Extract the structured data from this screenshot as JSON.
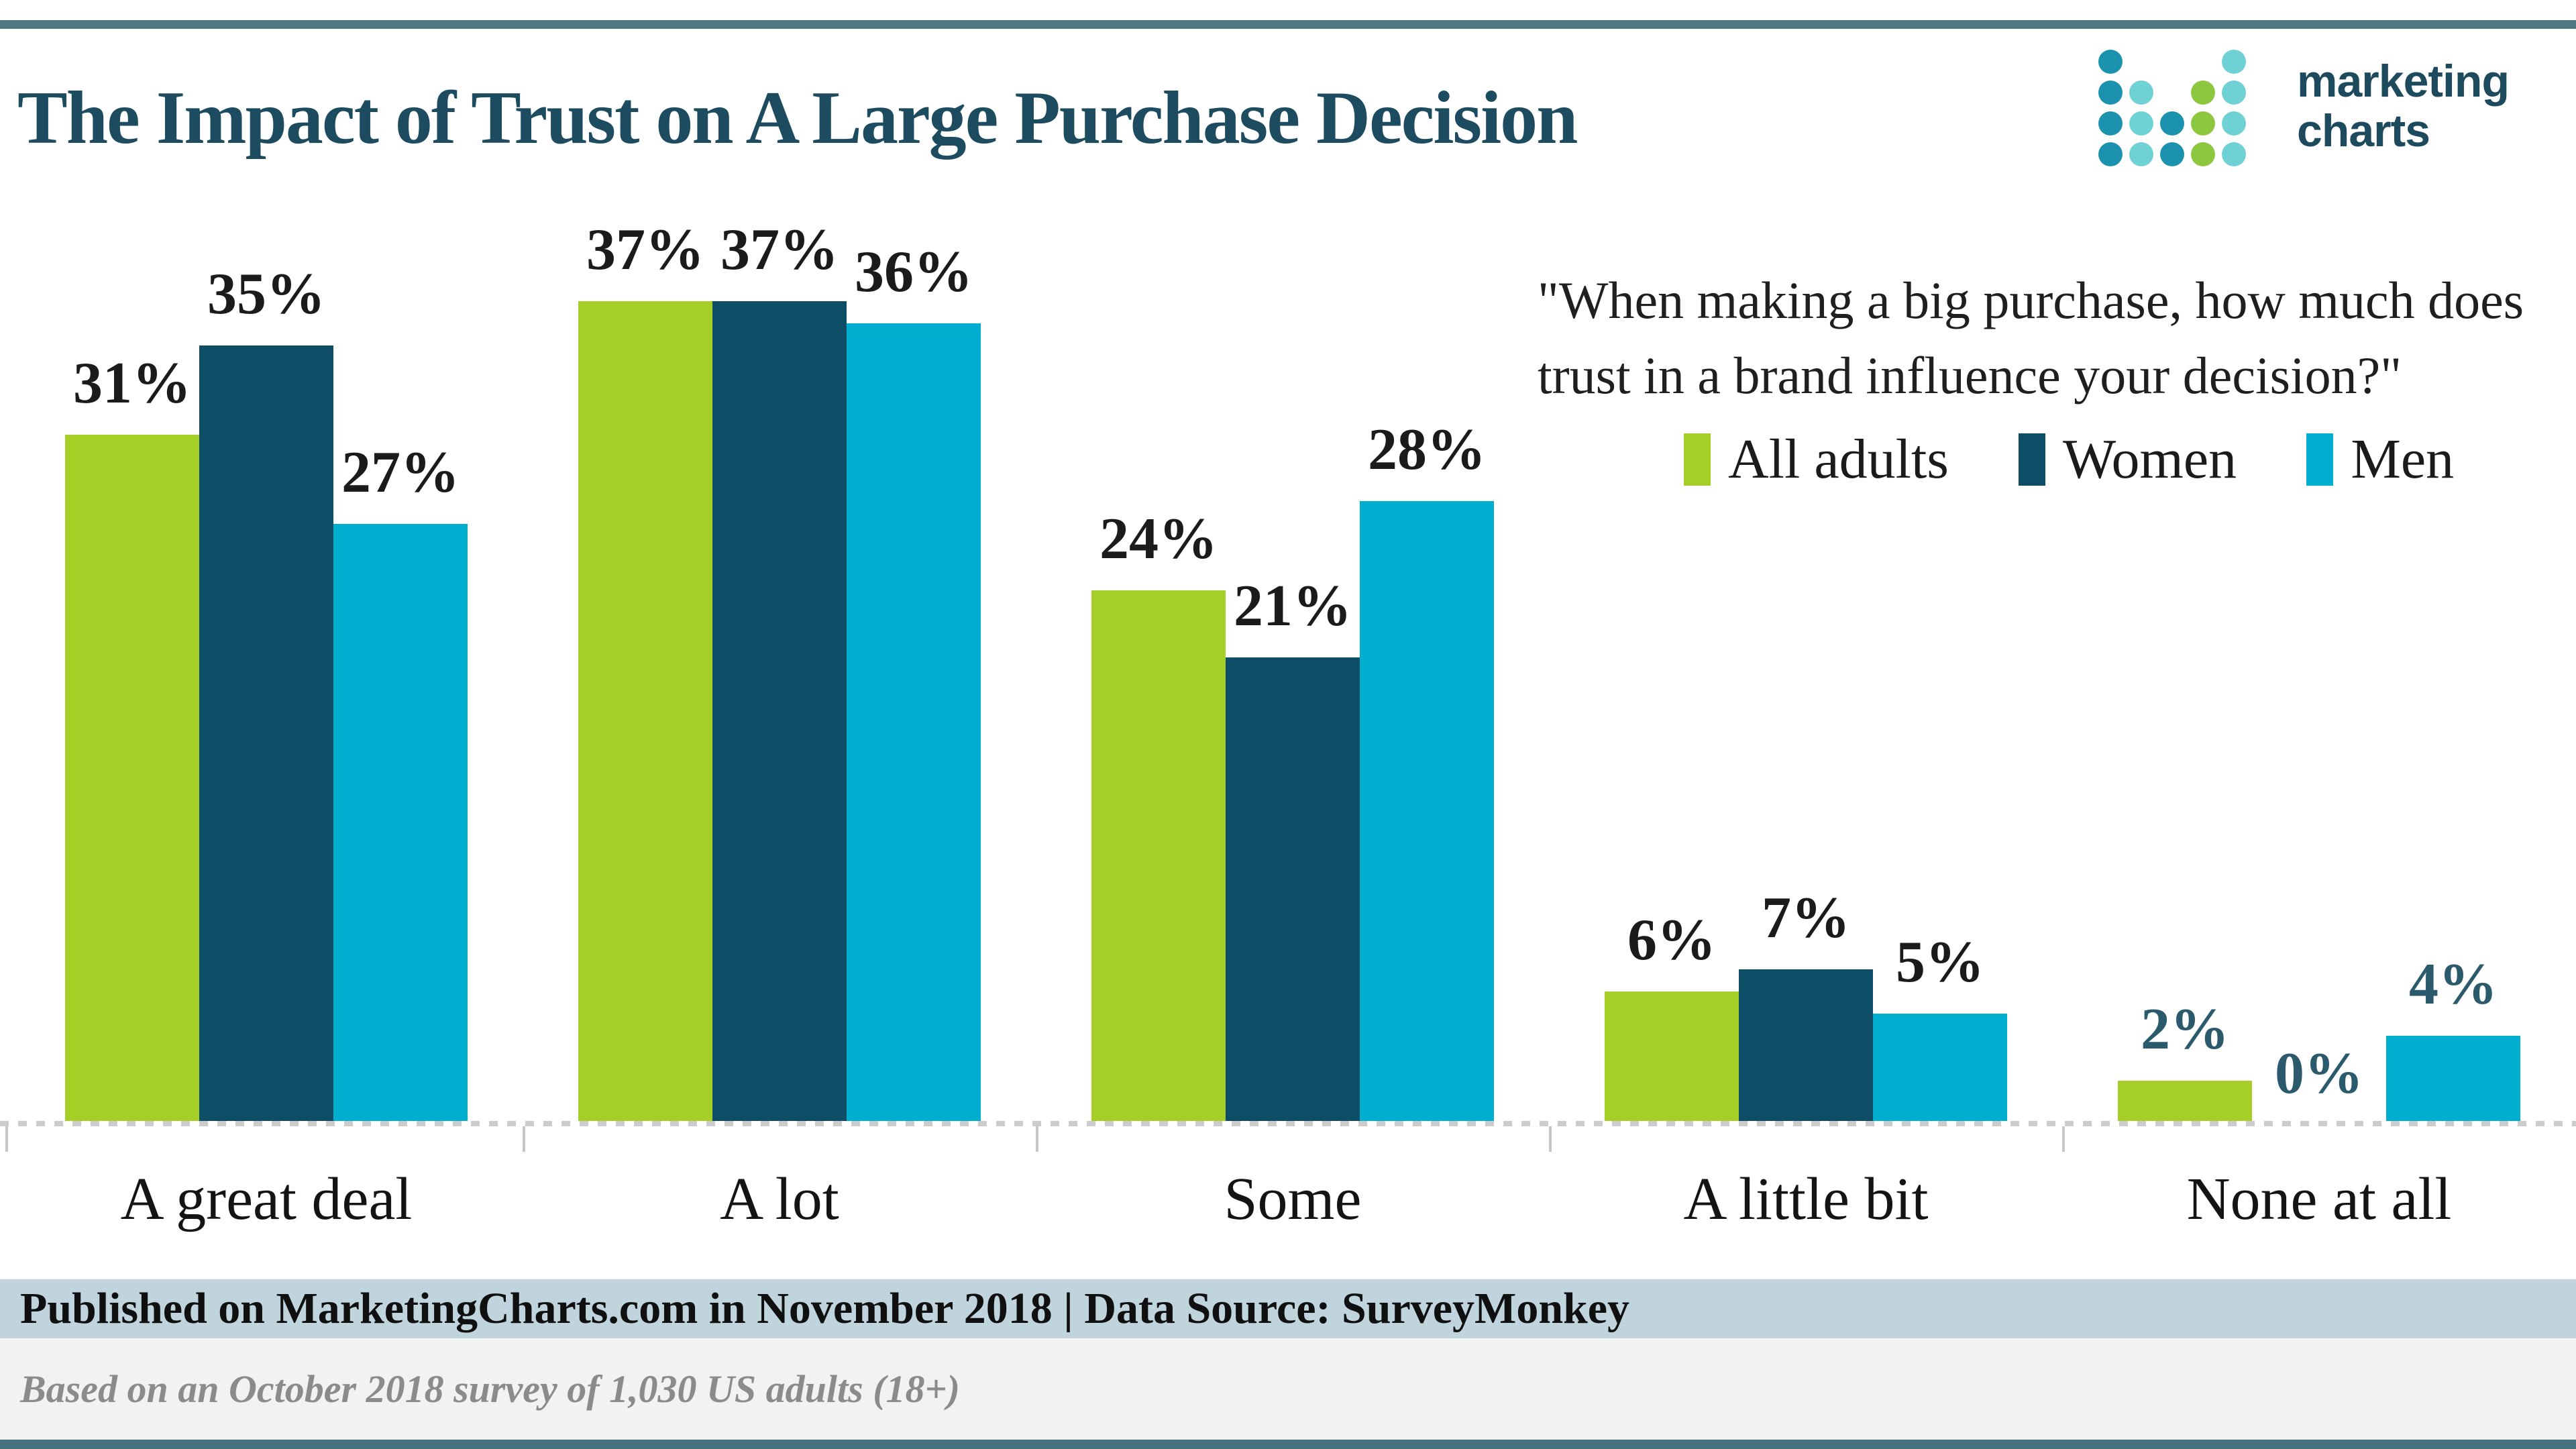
{
  "header": {
    "title": "The Impact of Trust on A Large Purchase Decision",
    "logo": {
      "wordmark_line1": "marketing",
      "wordmark_line2": "charts",
      "dot_colors": {
        "b": "#1b92ae",
        "c": "#70d1d4",
        "g": "#8dc63f"
      },
      "dot_grid": [
        [
          "b",
          "",
          "",
          "",
          "c"
        ],
        [
          "b",
          "c",
          "",
          "g",
          "c"
        ],
        [
          "b",
          "c",
          "b",
          "g",
          "c"
        ],
        [
          "b",
          "c",
          "b",
          "g",
          "c"
        ]
      ]
    }
  },
  "quote": {
    "line1": "\"When making a big purchase, how much does",
    "line2": "trust in a brand influence your decision?\""
  },
  "chart_data": {
    "type": "bar",
    "title": "The Impact of Trust on A Large Purchase Decision",
    "categories": [
      "A great deal",
      "A lot",
      "Some",
      "A little bit",
      "None at all"
    ],
    "series": [
      {
        "name": "All adults",
        "color": "#a5ce27",
        "values": [
          31,
          37,
          24,
          6,
          2
        ]
      },
      {
        "name": "Women",
        "color": "#0e4d66",
        "values": [
          35,
          37,
          21,
          7,
          0
        ]
      },
      {
        "name": "Men",
        "color": "#00aecf",
        "values": [
          27,
          36,
          28,
          5,
          4
        ]
      }
    ],
    "value_suffix": "%",
    "value_label_colors": [
      "#1b1b1b",
      "#1b1b1b",
      "#1b1b1b",
      "#1b1b1b",
      "#2b5a6d"
    ],
    "ylim": [
      0,
      40
    ],
    "grid": false,
    "legend_position": "upper-right",
    "baseline_style": "dotted",
    "xlabel": "",
    "ylabel": ""
  },
  "footer": {
    "published": "Published on MarketingCharts.com in November 2018 | Data Source: SurveyMonkey",
    "based_on": "Based on an October 2018 survey of 1,030 US adults (18+)"
  },
  "colors": {
    "title": "#1d4b5f",
    "top_rule": "#4e7683",
    "bottom_rule": "#45707e",
    "footer_band_blue": "#bfd4dd",
    "footer_band_gray": "#f2f2f2",
    "footer_note_text": "#8b8b8b",
    "axis_dotted_line": "#cccccc"
  }
}
